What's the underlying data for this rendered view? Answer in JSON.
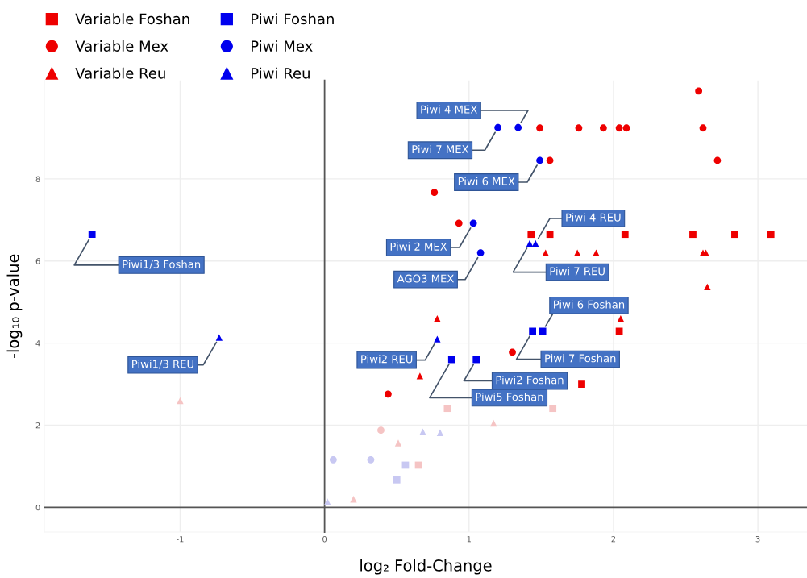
{
  "chart_data": {
    "type": "scatter",
    "xlabel": "log₂ Fold-Change",
    "ylabel": "-log₁₀ p-value",
    "xlim": [
      -1.94,
      3.34
    ],
    "ylim": [
      -0.6,
      10.4
    ],
    "xticks": [
      -1,
      0,
      1,
      2,
      3
    ],
    "yticks": [
      0,
      2,
      4,
      6,
      8
    ],
    "grid": true,
    "legend": "top left",
    "series": [
      {
        "name": "Variable Foshan",
        "color": "#ee0000",
        "marker": "square",
        "x": [
          1.43,
          1.56,
          2.08,
          2.55,
          2.84,
          3.09,
          2.04,
          1.78
        ],
        "values": [
          6.65,
          6.65,
          6.65,
          6.65,
          6.65,
          6.65,
          4.29,
          3.0
        ]
      },
      {
        "name": "Variable Mex",
        "color": "#ee0000",
        "marker": "circle",
        "x": [
          2.59,
          1.49,
          1.76,
          1.93,
          2.04,
          2.09,
          2.62,
          1.56,
          2.72,
          0.76,
          0.93,
          1.3,
          0.44
        ],
        "values": [
          10.14,
          9.24,
          9.24,
          9.24,
          9.24,
          9.24,
          9.24,
          8.45,
          8.45,
          7.67,
          6.92,
          3.78,
          2.76
        ]
      },
      {
        "name": "Variable Reu",
        "color": "#ee0000",
        "marker": "triangle",
        "x": [
          0.78,
          0.66,
          1.53,
          1.75,
          1.88,
          2.62,
          2.64,
          2.65,
          2.05
        ],
        "values": [
          4.6,
          3.2,
          6.2,
          6.2,
          6.2,
          6.2,
          6.2,
          5.37,
          4.6
        ]
      },
      {
        "name": "Piwi Foshan",
        "color": "#0000ee",
        "marker": "square",
        "x": [
          -1.61,
          1.44,
          1.51,
          0.88,
          1.05
        ],
        "values": [
          6.65,
          4.29,
          4.29,
          3.6,
          3.6
        ]
      },
      {
        "name": "Piwi Mex",
        "color": "#0000ee",
        "marker": "circle",
        "x": [
          1.2,
          1.34,
          1.49,
          1.03,
          1.08
        ],
        "values": [
          9.25,
          9.25,
          8.45,
          6.92,
          6.2
        ]
      },
      {
        "name": "Piwi Reu",
        "color": "#0000ee",
        "marker": "triangle",
        "x": [
          -0.73,
          0.78,
          1.42,
          1.46
        ],
        "values": [
          4.14,
          4.1,
          6.43,
          6.43
        ]
      },
      {
        "color": "#f5c4c4",
        "marker": "square",
        "x": [
          0.65,
          0.85,
          1.58
        ],
        "values": [
          1.03,
          2.41,
          2.41
        ]
      },
      {
        "color": "#f5c4c4",
        "marker": "circle",
        "x": [
          0.39
        ],
        "values": [
          1.88
        ]
      },
      {
        "color": "#f5c4c4",
        "marker": "triangle",
        "x": [
          -1.0,
          1.17,
          0.51,
          0.2
        ],
        "values": [
          2.6,
          2.05,
          1.57,
          0.2
        ]
      },
      {
        "color": "#c8c8f2",
        "marker": "square",
        "x": [
          0.56,
          0.5
        ],
        "values": [
          1.03,
          0.67
        ]
      },
      {
        "color": "#c8c8f2",
        "marker": "circle",
        "x": [
          0.06,
          0.32
        ],
        "values": [
          1.16,
          1.16
        ]
      },
      {
        "color": "#c8c8f2",
        "marker": "triangle",
        "x": [
          0.68,
          0.8,
          0.02
        ],
        "values": [
          1.84,
          1.82,
          0.14
        ]
      }
    ],
    "annotations": [
      {
        "text": "Piwi 4 MEX",
        "x": 1.34,
        "y": 9.25
      },
      {
        "text": "Piwi 7 MEX",
        "x": 1.2,
        "y": 9.25
      },
      {
        "text": "Piwi 6 MEX",
        "x": 1.49,
        "y": 8.45
      },
      {
        "text": "Piwi 2 MEX",
        "x": 1.03,
        "y": 6.92
      },
      {
        "text": "AGO3 MEX",
        "x": 1.08,
        "y": 6.2
      },
      {
        "text": "Piwi 4 REU",
        "x": 1.46,
        "y": 6.43
      },
      {
        "text": "Piwi 7 REU",
        "x": 1.42,
        "y": 6.43
      },
      {
        "text": "Piwi 6 Foshan",
        "x": 1.51,
        "y": 4.29
      },
      {
        "text": "Piwi 7 Foshan",
        "x": 1.44,
        "y": 4.29
      },
      {
        "text": "Piwi2 Foshan",
        "x": 1.05,
        "y": 3.6
      },
      {
        "text": "Piwi5 Foshan",
        "x": 0.88,
        "y": 3.6
      },
      {
        "text": "Piwi2 REU",
        "x": 0.78,
        "y": 4.1
      },
      {
        "text": "Piwi1/3 Foshan",
        "x": -1.61,
        "y": 6.65
      },
      {
        "text": "Piwi1/3 REU",
        "x": -0.73,
        "y": 4.14
      }
    ]
  }
}
